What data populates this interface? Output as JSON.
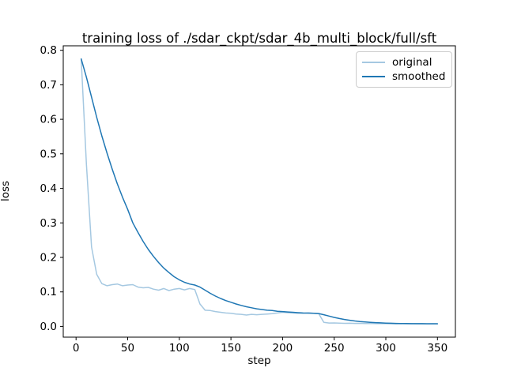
{
  "chart_data": {
    "type": "line",
    "title": "training loss of ./sdar_ckpt/sdar_4b_multi_block/full/sft",
    "xlabel": "step",
    "ylabel": "loss",
    "grid": false,
    "legend_position": "upper right",
    "axis_color": "#000000",
    "xlim": [
      -12.4,
      367.4
    ],
    "ylim": [
      -0.031,
      0.813
    ],
    "xticks": [
      0,
      50,
      100,
      150,
      200,
      250,
      300,
      350
    ],
    "yticks": [
      "0.0",
      "0.1",
      "0.2",
      "0.3",
      "0.4",
      "0.5",
      "0.6",
      "0.7",
      "0.8"
    ],
    "x": [
      5,
      10,
      15,
      20,
      25,
      30,
      35,
      40,
      45,
      50,
      55,
      60,
      65,
      70,
      75,
      80,
      85,
      90,
      95,
      100,
      105,
      110,
      115,
      120,
      125,
      130,
      135,
      140,
      145,
      150,
      155,
      160,
      165,
      170,
      175,
      180,
      185,
      190,
      195,
      200,
      205,
      210,
      215,
      220,
      225,
      230,
      235,
      240,
      245,
      250,
      255,
      260,
      265,
      270,
      275,
      280,
      285,
      290,
      295,
      300,
      305,
      310,
      315,
      320,
      325,
      330,
      335,
      340,
      345,
      350
    ],
    "series": [
      {
        "name": "original",
        "color": "#a5c8e1",
        "values": [
          0.775,
          0.47,
          0.23,
          0.151,
          0.124,
          0.118,
          0.121,
          0.123,
          0.118,
          0.12,
          0.121,
          0.114,
          0.112,
          0.113,
          0.108,
          0.105,
          0.11,
          0.104,
          0.108,
          0.11,
          0.106,
          0.11,
          0.107,
          0.065,
          0.047,
          0.046,
          0.043,
          0.041,
          0.039,
          0.038,
          0.036,
          0.035,
          0.033,
          0.035,
          0.034,
          0.035,
          0.036,
          0.037,
          0.039,
          0.041,
          0.04,
          0.039,
          0.038,
          0.038,
          0.039,
          0.038,
          0.037,
          0.012,
          0.01,
          0.0102,
          0.0095,
          0.009,
          0.0093,
          0.0088,
          0.009,
          0.0085,
          0.0087,
          0.0082,
          0.008,
          0.0082,
          0.0079,
          0.0077,
          0.008,
          0.0076,
          0.0078,
          0.0075,
          0.0077,
          0.0074,
          0.0076,
          0.0075
        ]
      },
      {
        "name": "smoothed",
        "color": "#1f77b4",
        "values": [
          0.775,
          0.722,
          0.664,
          0.606,
          0.552,
          0.502,
          0.456,
          0.413,
          0.374,
          0.339,
          0.3,
          0.272,
          0.246,
          0.223,
          0.203,
          0.185,
          0.169,
          0.156,
          0.144,
          0.135,
          0.128,
          0.123,
          0.12,
          0.114,
          0.105,
          0.096,
          0.088,
          0.081,
          0.075,
          0.07,
          0.065,
          0.061,
          0.057,
          0.054,
          0.051,
          0.049,
          0.047,
          0.046,
          0.044,
          0.043,
          0.042,
          0.041,
          0.04,
          0.039,
          0.0388,
          0.038,
          0.0373,
          0.034,
          0.03,
          0.0262,
          0.023,
          0.0203,
          0.018,
          0.016,
          0.0144,
          0.0131,
          0.012,
          0.0111,
          0.0104,
          0.0098,
          0.0093,
          0.0089,
          0.0086,
          0.0084,
          0.0082,
          0.0081,
          0.008,
          0.0079,
          0.0078,
          0.0078
        ]
      }
    ]
  }
}
